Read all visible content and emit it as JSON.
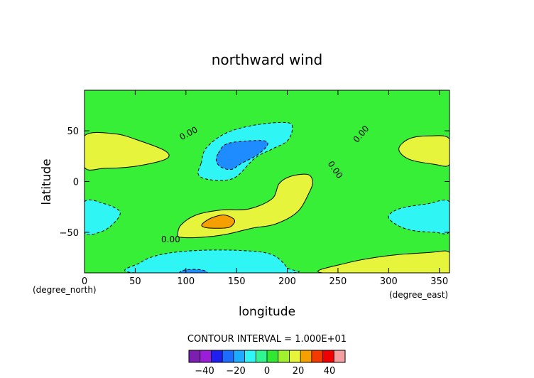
{
  "chart_data": {
    "type": "contour",
    "title": "northward wind",
    "xlabel": "longitude",
    "ylabel": "latitude",
    "x_unit": "(degree_east)",
    "y_unit": "(degree_north)",
    "xlim": [
      0,
      360
    ],
    "ylim": [
      -90,
      90
    ],
    "x_ticks": [
      0,
      50,
      100,
      150,
      200,
      250,
      300,
      350
    ],
    "y_ticks": [
      -50,
      0,
      50
    ],
    "x_tick_labels": [
      "0",
      "50",
      "100",
      "150",
      "200",
      "250",
      "300",
      "350"
    ],
    "y_tick_labels": [
      "−50",
      "0",
      "50"
    ],
    "contour_interval_text": "CONTOUR INTERVAL = 1.000E+01",
    "contour_labels": [
      {
        "text": "0.00",
        "lon": 104,
        "lat": 45
      },
      {
        "text": "0.00",
        "lon": 275,
        "lat": 45
      },
      {
        "text": "0.00",
        "lon": 245,
        "lat": 10
      },
      {
        "text": "0.00",
        "lon": 85,
        "lat": -60
      }
    ],
    "regions": [
      {
        "name": "positive-west-north",
        "value": 10,
        "color": "#e6f53c",
        "points": [
          [
            0,
            45
          ],
          [
            30,
            47
          ],
          [
            55,
            40
          ],
          [
            80,
            30
          ],
          [
            80,
            22
          ],
          [
            50,
            15
          ],
          [
            20,
            13
          ],
          [
            0,
            14
          ]
        ]
      },
      {
        "name": "positive-east-north",
        "value": 10,
        "color": "#e6f53c",
        "points": [
          [
            360,
            42
          ],
          [
            340,
            45
          ],
          [
            320,
            42
          ],
          [
            310,
            32
          ],
          [
            320,
            22
          ],
          [
            345,
            17
          ],
          [
            360,
            17
          ]
        ]
      },
      {
        "name": "positive-central",
        "value": 10,
        "color": "#e6f53c",
        "points": [
          [
            92,
            -52
          ],
          [
            95,
            -43
          ],
          [
            110,
            -33
          ],
          [
            135,
            -28
          ],
          [
            162,
            -27
          ],
          [
            185,
            -17
          ],
          [
            192,
            -2
          ],
          [
            203,
            5
          ],
          [
            220,
            7
          ],
          [
            225,
            0
          ],
          [
            222,
            -10
          ],
          [
            210,
            -30
          ],
          [
            188,
            -42
          ],
          [
            165,
            -46
          ],
          [
            140,
            -52
          ],
          [
            115,
            -55
          ],
          [
            95,
            -55
          ]
        ]
      },
      {
        "name": "positive-south-east",
        "value": 10,
        "color": "#e6f53c",
        "points": [
          [
            235,
            -90
          ],
          [
            260,
            -80
          ],
          [
            300,
            -73
          ],
          [
            340,
            -70
          ],
          [
            360,
            -70
          ],
          [
            360,
            -90
          ]
        ]
      },
      {
        "name": "peak-positive",
        "value": 20,
        "color": "#f5a000",
        "points": [
          [
            116,
            -42
          ],
          [
            125,
            -36
          ],
          [
            138,
            -33
          ],
          [
            148,
            -38
          ],
          [
            143,
            -45
          ],
          [
            128,
            -46
          ],
          [
            118,
            -45
          ]
        ]
      },
      {
        "name": "negative-north-central",
        "value": -10,
        "color": "#30f5f5",
        "points": [
          [
            115,
            18
          ],
          [
            120,
            33
          ],
          [
            140,
            48
          ],
          [
            170,
            56
          ],
          [
            200,
            58
          ],
          [
            205,
            52
          ],
          [
            200,
            40
          ],
          [
            185,
            32
          ],
          [
            168,
            23
          ],
          [
            150,
            5
          ],
          [
            135,
            1
          ],
          [
            118,
            3
          ],
          [
            112,
            8
          ]
        ]
      },
      {
        "name": "negative-west-south",
        "value": -10,
        "color": "#30f5f5",
        "points": [
          [
            0,
            -20
          ],
          [
            20,
            -22
          ],
          [
            35,
            -30
          ],
          [
            28,
            -42
          ],
          [
            15,
            -50
          ],
          [
            0,
            -50
          ]
        ]
      },
      {
        "name": "negative-east-south",
        "value": -10,
        "color": "#30f5f5",
        "points": [
          [
            360,
            -20
          ],
          [
            338,
            -22
          ],
          [
            310,
            -27
          ],
          [
            300,
            -36
          ],
          [
            318,
            -47
          ],
          [
            345,
            -50
          ],
          [
            360,
            -49
          ]
        ]
      },
      {
        "name": "negative-south-central",
        "value": -10,
        "color": "#30f5f5",
        "points": [
          [
            50,
            -90
          ],
          [
            55,
            -80
          ],
          [
            75,
            -72
          ],
          [
            110,
            -68
          ],
          [
            155,
            -68
          ],
          [
            185,
            -72
          ],
          [
            200,
            -85
          ],
          [
            200,
            -90
          ]
        ]
      },
      {
        "name": "min-negative",
        "value": -20,
        "color": "#1e8cff",
        "points": [
          [
            132,
            28
          ],
          [
            140,
            37
          ],
          [
            160,
            40
          ],
          [
            178,
            40
          ],
          [
            180,
            35
          ],
          [
            170,
            26
          ],
          [
            155,
            18
          ],
          [
            145,
            12
          ],
          [
            135,
            14
          ],
          [
            130,
            20
          ]
        ]
      },
      {
        "name": "min-negative-south",
        "value": -20,
        "color": "#1e8cff",
        "points": [
          [
            95,
            -90
          ],
          [
            100,
            -87
          ],
          [
            115,
            -87
          ],
          [
            120,
            -90
          ]
        ]
      }
    ],
    "colorbar": {
      "ticks": [
        -40,
        -20,
        0,
        20,
        40
      ],
      "tick_labels": [
        "−40",
        "−20",
        "0",
        "20",
        "40"
      ],
      "colors": [
        "#7a1fb0",
        "#9a1ed8",
        "#1f1ff0",
        "#1e6cff",
        "#1eaaff",
        "#30f5f5",
        "#30f590",
        "#30e830",
        "#a0f030",
        "#e6f53c",
        "#f5a000",
        "#f53a00",
        "#f00000",
        "#f5a0a0"
      ]
    },
    "background_color": "#38ef38",
    "grid": false,
    "legend": "bottom"
  }
}
